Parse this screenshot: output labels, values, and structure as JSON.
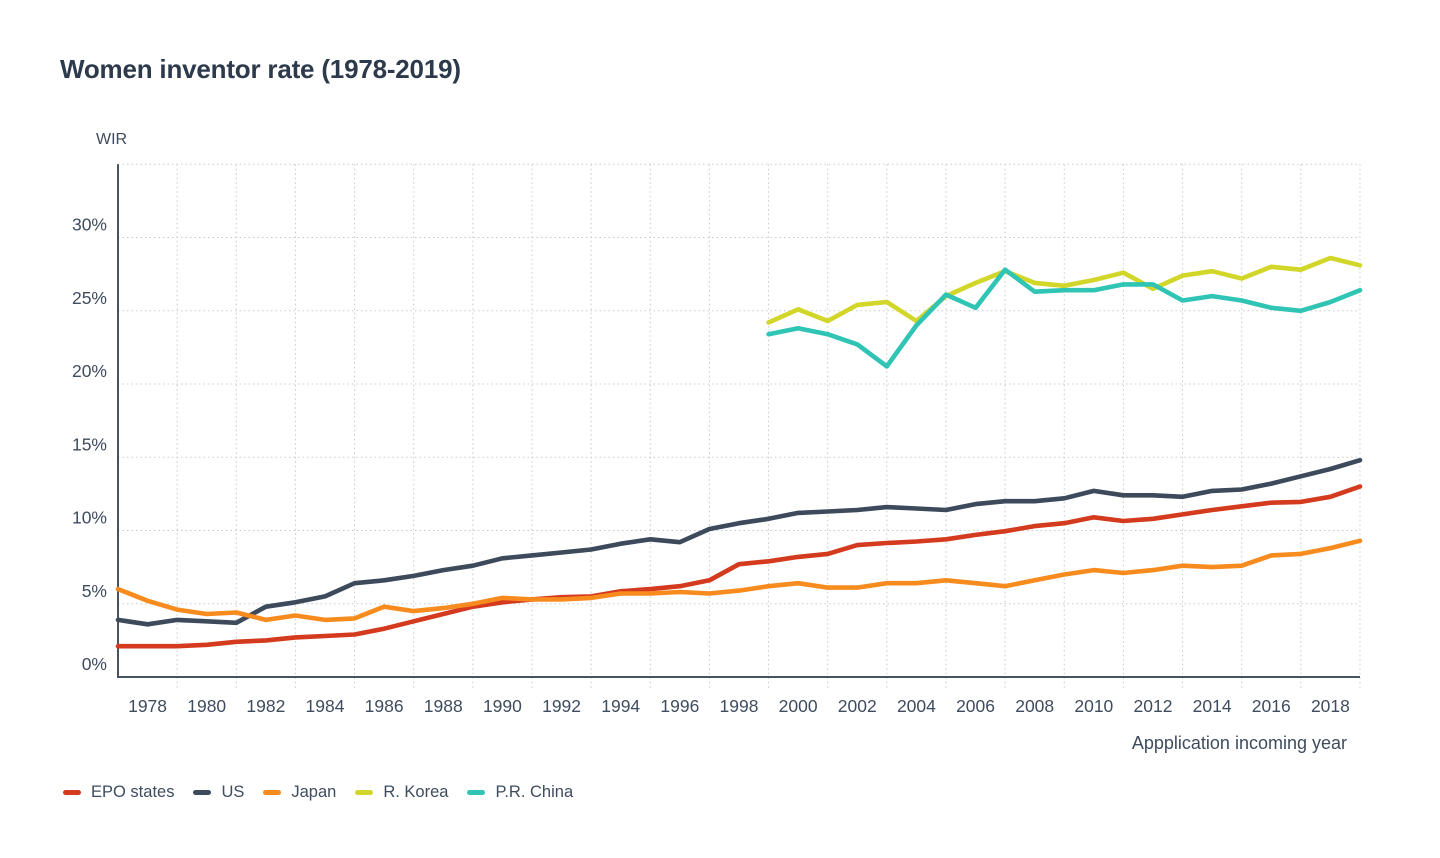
{
  "title": "Women inventor rate (1978-2019)",
  "y_axis_title": "WIR",
  "x_axis_title": "Appplication incoming year",
  "chart_data": {
    "type": "line",
    "x_start_year": 1977,
    "x_end_year": 2019,
    "x_ticks": [
      1978,
      1980,
      1982,
      1984,
      1986,
      1988,
      1990,
      1992,
      1994,
      1996,
      1998,
      2000,
      2002,
      2004,
      2006,
      2008,
      2010,
      2012,
      2014,
      2016,
      2018
    ],
    "y_ticks": [
      0,
      5,
      10,
      15,
      20,
      25,
      30
    ],
    "y_tick_suffix": "%",
    "ylim": [
      0,
      35
    ],
    "grid": "dotted",
    "legend_position": "bottom",
    "series": [
      {
        "name": "EPO states",
        "color": "#d43a1e",
        "start_year": 1977,
        "values": [
          2.1,
          2.1,
          2.1,
          2.2,
          2.4,
          2.5,
          2.7,
          2.8,
          2.9,
          3.3,
          3.8,
          4.3,
          4.8,
          5.1,
          5.3,
          5.45,
          5.5,
          5.85,
          6.0,
          6.2,
          6.6,
          7.7,
          7.9,
          8.2,
          8.4,
          9.0,
          9.15,
          9.25,
          9.4,
          9.7,
          9.95,
          10.3,
          10.5,
          10.9,
          10.65,
          10.8,
          11.1,
          11.4,
          11.65,
          11.9,
          11.95,
          12.3,
          13.0
        ]
      },
      {
        "name": "US",
        "color": "#3d4a5b",
        "start_year": 1977,
        "values": [
          3.9,
          3.6,
          3.9,
          3.8,
          3.7,
          4.8,
          5.1,
          5.5,
          6.4,
          6.6,
          6.9,
          7.3,
          7.6,
          8.1,
          8.3,
          8.5,
          8.7,
          9.1,
          9.4,
          9.2,
          10.1,
          10.5,
          10.8,
          11.2,
          11.3,
          11.4,
          11.6,
          11.5,
          11.4,
          11.8,
          12.0,
          12.0,
          12.2,
          12.7,
          12.4,
          12.4,
          12.3,
          12.7,
          12.8,
          13.2,
          13.7,
          14.2,
          14.8
        ]
      },
      {
        "name": "Japan",
        "color": "#f78b1e",
        "start_year": 1977,
        "values": [
          6.0,
          5.2,
          4.6,
          4.3,
          4.4,
          3.9,
          4.2,
          3.9,
          4.0,
          4.8,
          4.5,
          4.7,
          5.0,
          5.4,
          5.3,
          5.3,
          5.4,
          5.7,
          5.7,
          5.8,
          5.7,
          5.9,
          6.2,
          6.4,
          6.1,
          6.1,
          6.4,
          6.4,
          6.6,
          6.4,
          6.2,
          6.6,
          7.0,
          7.3,
          7.1,
          7.3,
          7.6,
          7.5,
          7.6,
          8.3,
          8.4,
          8.8,
          9.3
        ]
      },
      {
        "name": "R. Korea",
        "color": "#d2d629",
        "start_year": 1999,
        "values": [
          24.2,
          25.1,
          24.3,
          25.4,
          25.6,
          24.3,
          26.0,
          26.9,
          27.7,
          26.9,
          26.7,
          27.1,
          27.6,
          26.5,
          27.4,
          27.7,
          27.2,
          28.0,
          27.8,
          28.6,
          28.1
        ]
      },
      {
        "name": "P.R. China",
        "color": "#30c4b4",
        "start_year": 1999,
        "values": [
          23.4,
          23.8,
          23.4,
          22.7,
          21.2,
          24.0,
          26.1,
          25.2,
          27.8,
          26.3,
          26.4,
          26.4,
          26.8,
          26.8,
          25.7,
          26.0,
          25.7,
          25.2,
          25.0,
          25.6,
          26.4
        ]
      }
    ]
  }
}
